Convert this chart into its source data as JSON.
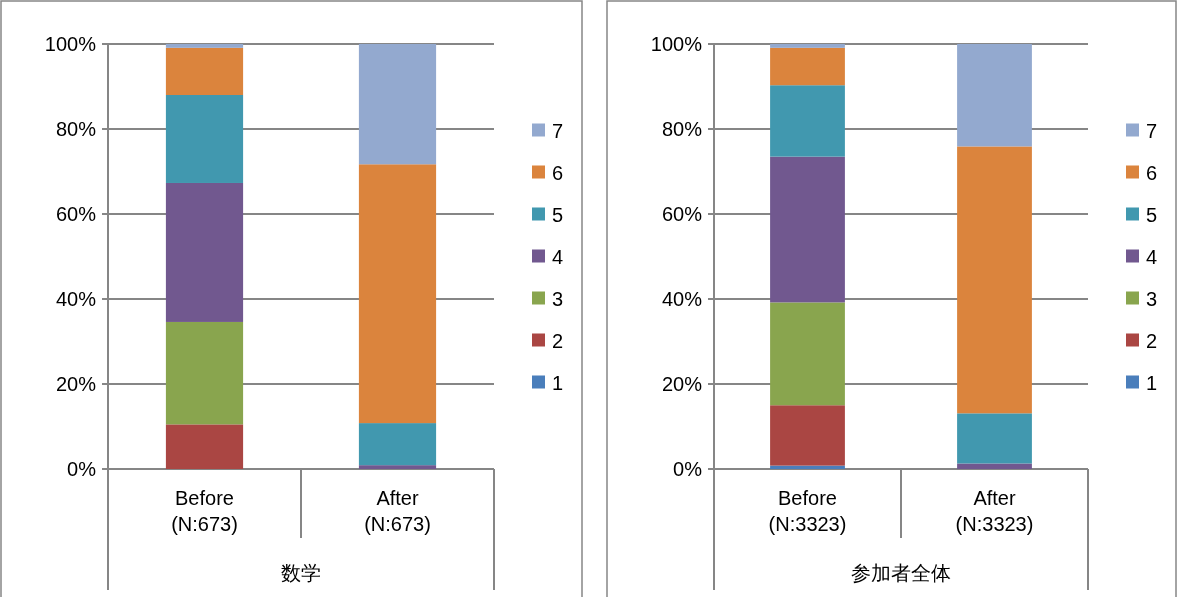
{
  "chart_data": [
    {
      "type": "bar",
      "stacked": true,
      "xlabel": "数学",
      "categories": [
        "Before (N:673)",
        "After (N:673)"
      ],
      "series": [
        {
          "name": "1",
          "color": "#4a7ebb",
          "values": [
            0,
            0
          ]
        },
        {
          "name": "2",
          "color": "#aa4643",
          "values": [
            10.5,
            0
          ]
        },
        {
          "name": "3",
          "color": "#89a54e",
          "values": [
            24.1,
            0
          ]
        },
        {
          "name": "4",
          "color": "#71588f",
          "values": [
            32.7,
            0.9
          ]
        },
        {
          "name": "5",
          "color": "#4198af",
          "values": [
            20.7,
            9.9
          ]
        },
        {
          "name": "6",
          "color": "#db843d",
          "values": [
            11.1,
            60.9
          ]
        },
        {
          "name": "7",
          "color": "#93a9cf",
          "values": [
            0.9,
            28.3
          ]
        }
      ],
      "ylim": [
        0,
        100
      ],
      "yticks": [
        {
          "value": 0,
          "label": "0%"
        },
        {
          "value": 20,
          "label": "20%"
        },
        {
          "value": 40,
          "label": "40%"
        },
        {
          "value": 60,
          "label": "60%"
        },
        {
          "value": 80,
          "label": "80%"
        },
        {
          "value": 100,
          "label": "100%"
        }
      ],
      "grid": "y",
      "legend": "right"
    },
    {
      "type": "bar",
      "stacked": true,
      "xlabel": "参加者全体",
      "categories": [
        "Before (N:3323)",
        "After (N:3323)"
      ],
      "series": [
        {
          "name": "1",
          "color": "#4a7ebb",
          "values": [
            0.8,
            0
          ]
        },
        {
          "name": "2",
          "color": "#aa4643",
          "values": [
            14.2,
            0
          ]
        },
        {
          "name": "3",
          "color": "#89a54e",
          "values": [
            24.2,
            0
          ]
        },
        {
          "name": "4",
          "color": "#71588f",
          "values": [
            34.3,
            1.3
          ]
        },
        {
          "name": "5",
          "color": "#4198af",
          "values": [
            16.8,
            11.8
          ]
        },
        {
          "name": "6",
          "color": "#db843d",
          "values": [
            8.8,
            62.8
          ]
        },
        {
          "name": "7",
          "color": "#93a9cf",
          "values": [
            0.9,
            24.1
          ]
        }
      ],
      "ylim": [
        0,
        100
      ],
      "yticks": [
        {
          "value": 0,
          "label": "0%"
        },
        {
          "value": 20,
          "label": "20%"
        },
        {
          "value": 40,
          "label": "40%"
        },
        {
          "value": 60,
          "label": "60%"
        },
        {
          "value": 80,
          "label": "80%"
        },
        {
          "value": 100,
          "label": "100%"
        }
      ],
      "grid": "y",
      "legend": "right"
    }
  ]
}
